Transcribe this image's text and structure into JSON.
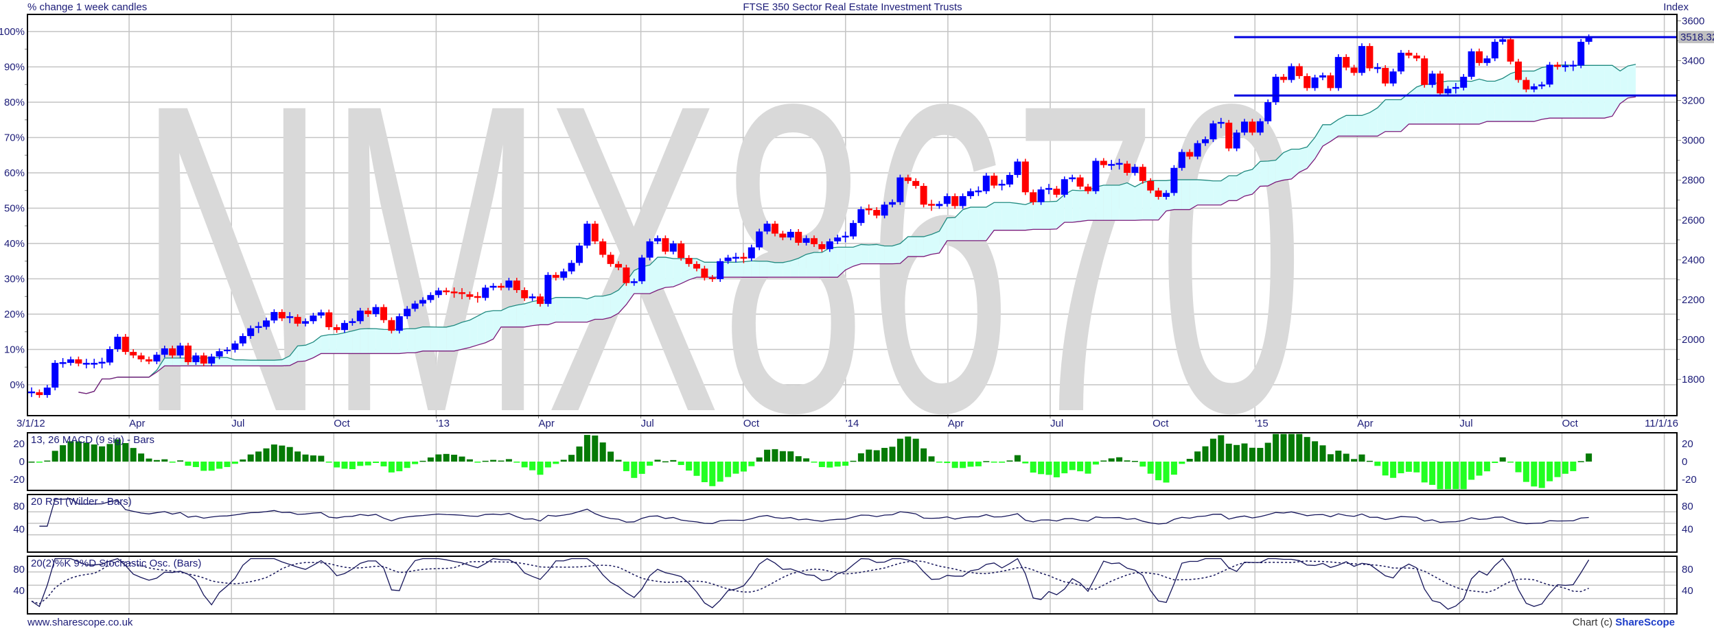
{
  "header": {
    "left_label": "% change 1 week candles",
    "title": "FTSE 350 Sector Real Estate Investment Trusts",
    "right_label": "Index"
  },
  "footer": {
    "website": "www.sharescope.co.uk",
    "copyright_prefix": "Chart (c) ",
    "brand": "ShareScope"
  },
  "watermark": "NMX8670",
  "colors": {
    "up_candle": "#0000ff",
    "down_candle": "#ff0000",
    "cloud_bullish": "#d8fcfc",
    "cloud_bearish": "#fcd8f4",
    "cloud_fast_line": "#1f8a80",
    "cloud_slow_line": "#7a1a7a",
    "macd_positive": "#067a06",
    "macd_negative": "#22ff22",
    "trend_lines": "#0000e0",
    "text": "#1c1c78"
  },
  "chart_data": {
    "type": "candlestick",
    "interval": "1 week",
    "first_candle": "3/1/12",
    "reference_index_at_0pct": 1773,
    "last_price_label": "3518.32",
    "x_axis": {
      "tick_labels": [
        "3/1/12",
        "Apr",
        "Jul",
        "Oct",
        "'13",
        "Apr",
        "Jul",
        "Oct",
        "'14",
        "Apr",
        "Jul",
        "Oct",
        "'15",
        "Apr",
        "Jul",
        "Oct",
        "11/1/16"
      ]
    },
    "y_axis_left": {
      "unit": "%",
      "ticks": [
        "100%",
        "90%",
        "80%",
        "70%",
        "60%",
        "50%",
        "40%",
        "30%",
        "20%",
        "10%",
        "0%"
      ],
      "values": [
        100,
        90,
        80,
        70,
        60,
        50,
        40,
        30,
        20,
        10,
        0
      ]
    },
    "y_axis_right": {
      "ticks": [
        "3600",
        "3400",
        "3200",
        "3000",
        "2800",
        "2600",
        "2400",
        "2200",
        "2000",
        "1800"
      ],
      "values": [
        3600,
        3400,
        3200,
        3000,
        2800,
        2600,
        2400,
        2200,
        2000,
        1800
      ]
    },
    "pct_close": [
      -2.1,
      -2.9,
      -0.8,
      6.2,
      6.2,
      7.2,
      6.0,
      6.0,
      6.0,
      6.3,
      10.1,
      13.6,
      9.3,
      8.3,
      7.2,
      6.6,
      8.5,
      10.3,
      8.3,
      11.1,
      6.4,
      8.3,
      6.0,
      8.0,
      9.5,
      9.9,
      11.7,
      13.8,
      16.0,
      16.4,
      18.2,
      20.6,
      18.8,
      19.2,
      17.3,
      18.0,
      19.6,
      20.5,
      16.3,
      15.5,
      17.5,
      18.0,
      21.0,
      20.0,
      22.0,
      18.3,
      15.3,
      19.4,
      21.5,
      23.0,
      24.0,
      25.4,
      26.7,
      26.2,
      26.0,
      25.6,
      24.9,
      24.6,
      27.5,
      28.0,
      27.5,
      29.5,
      26.8,
      24.5,
      25.0,
      22.9,
      31.1,
      30.3,
      32.1,
      34.5,
      39.4,
      45.6,
      40.6,
      36.8,
      34.2,
      33.2,
      28.8,
      29.3,
      36.0,
      40.6,
      41.5,
      37.7,
      40.0,
      35.9,
      34.2,
      32.9,
      30.3,
      29.9,
      35.0,
      36.0,
      36.0,
      35.8,
      38.9,
      43.4,
      45.6,
      42.8,
      41.7,
      43.3,
      40.2,
      41.5,
      39.8,
      38.4,
      40.6,
      41.7,
      42.0,
      45.8,
      49.7,
      49.5,
      47.9,
      51.0,
      51.7,
      58.7,
      57.7,
      56.3,
      51.0,
      50.6,
      51.2,
      53.4,
      50.6,
      53.4,
      54.8,
      54.8,
      59.2,
      56.4,
      56.7,
      59.4,
      63.2,
      54.5,
      51.7,
      55.3,
      55.5,
      53.8,
      58.2,
      58.7,
      56.1,
      54.8,
      63.4,
      62.2,
      62.3,
      62.6,
      60.0,
      61.7,
      57.7,
      55.0,
      53.2,
      54.3,
      61.4,
      65.9,
      64.6,
      68.4,
      69.5,
      74.0,
      74.2,
      66.9,
      71.4,
      74.5,
      71.4,
      74.6,
      80.0,
      87.2,
      86.3,
      90.2,
      87.4,
      84.0,
      87.0,
      87.6,
      84.0,
      92.8,
      89.8,
      88.3,
      95.9,
      89.6,
      89.7,
      85.3,
      88.7,
      94.0,
      93.2,
      92.4,
      84.9,
      88.1,
      82.5,
      83.8,
      84.1,
      87.2,
      94.4,
      91.1,
      92.4,
      97.1,
      97.8,
      91.5,
      86.3,
      83.6,
      84.5,
      85.0,
      90.6,
      90.0,
      90.2,
      90.4,
      97.1,
      98.4
    ],
    "trend_lines": [
      {
        "value": 3518,
        "start": "mid Dec 2014"
      },
      {
        "value": 3225,
        "start": "mid Dec 2014"
      }
    ],
    "indicators": [
      {
        "label": "13, 26 MACD (9 sig) - Bars",
        "ticks": [
          "20",
          "0",
          "-20"
        ],
        "values": [
          20,
          0,
          -20
        ]
      },
      {
        "label": "20 RSI (Wilder - Bars)",
        "ticks": [
          "80",
          "40"
        ],
        "values": [
          80,
          40
        ]
      },
      {
        "label": "20(2)%K 9%D Stochastic Osc. (Bars)",
        "ticks": [
          "80",
          "40"
        ],
        "values": [
          80,
          40
        ]
      }
    ]
  }
}
